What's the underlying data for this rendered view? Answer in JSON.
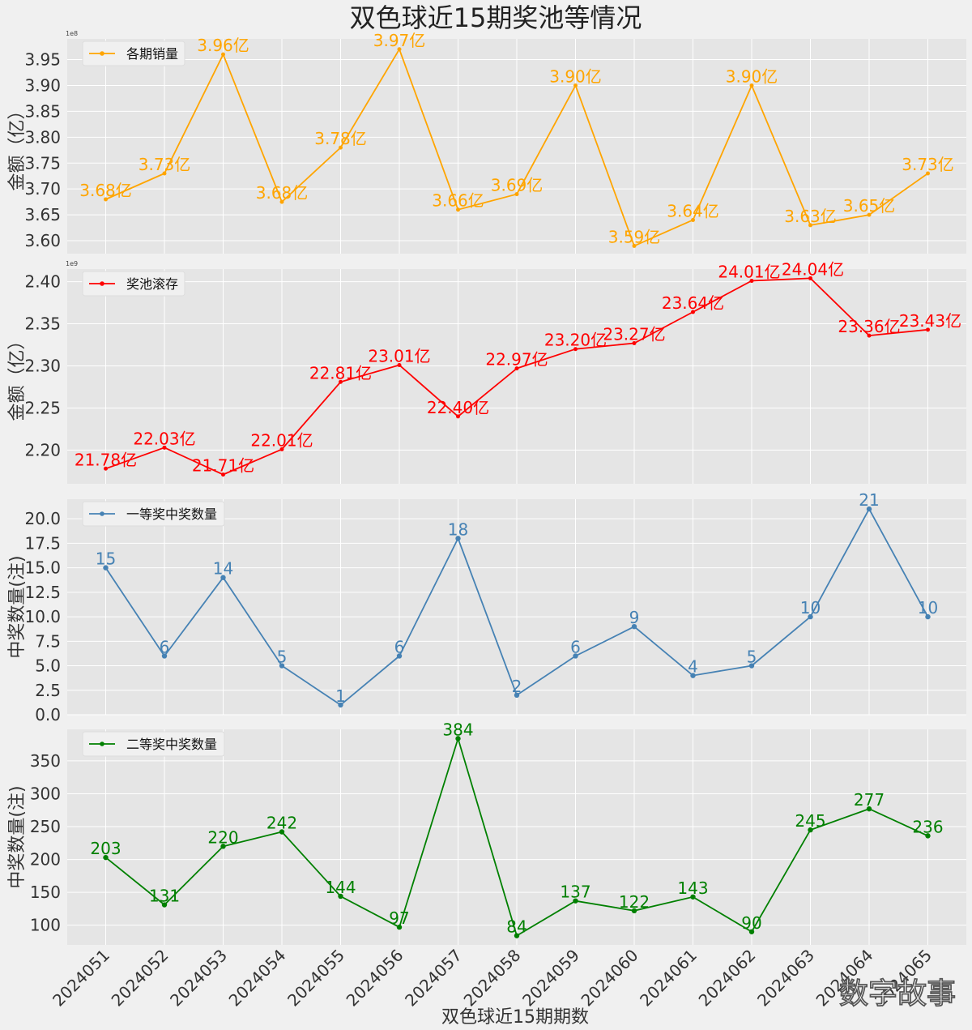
{
  "chart_data": {
    "type": "line",
    "title": "双色球近15期奖池等情况",
    "xlabel": "双色球近15期期数",
    "categories": [
      "2024051",
      "2024052",
      "2024053",
      "2024054",
      "2024055",
      "2024056",
      "2024057",
      "2024058",
      "2024059",
      "2024060",
      "2024061",
      "2024062",
      "2024063",
      "2024064",
      "2024065"
    ],
    "watermark": "数字故事",
    "panels": [
      {
        "name": "各期销量",
        "color": "#FFA500",
        "ylabel": "金额（亿）",
        "exponent": "1e8",
        "scale": 100000000,
        "ylim": [
          3.575,
          3.99
        ],
        "yticks": [
          3.6,
          3.65,
          3.7,
          3.75,
          3.8,
          3.85,
          3.9,
          3.95
        ],
        "tick_decimals": 2,
        "values": [
          3.68,
          3.73,
          3.96,
          3.675,
          3.78,
          3.97,
          3.66,
          3.69,
          3.9,
          3.59,
          3.64,
          3.9,
          3.63,
          3.65,
          3.73
        ],
        "labels": [
          "3.68亿",
          "3.73亿",
          "3.96亿",
          "3.68亿",
          "3.78亿",
          "3.97亿",
          "3.66亿",
          "3.69亿",
          "3.90亿",
          "3.59亿",
          "3.64亿",
          "3.90亿",
          "3.63亿",
          "3.65亿",
          "3.73亿"
        ]
      },
      {
        "name": "奖池滚存",
        "color": "#FF0000",
        "ylabel": "金额（亿）",
        "exponent": "1e9",
        "scale": 1000000000,
        "ylim": [
          2.16,
          2.415
        ],
        "yticks": [
          2.2,
          2.25,
          2.3,
          2.35,
          2.4
        ],
        "tick_decimals": 2,
        "values": [
          2.178,
          2.203,
          2.171,
          2.201,
          2.281,
          2.301,
          2.24,
          2.297,
          2.32,
          2.327,
          2.364,
          2.401,
          2.404,
          2.336,
          2.343
        ],
        "labels": [
          "21.78亿",
          "22.03亿",
          "21.71亿",
          "22.01亿",
          "22.81亿",
          "23.01亿",
          "22.40亿",
          "22.97亿",
          "23.20亿",
          "23.27亿",
          "23.64亿",
          "24.01亿",
          "24.04亿",
          "23.36亿",
          "23.43亿"
        ]
      },
      {
        "name": "一等奖中奖数量",
        "color": "#4682B4",
        "ylabel": "中奖数量(注)",
        "ylim": [
          0,
          22
        ],
        "yticks": [
          0.0,
          2.5,
          5.0,
          7.5,
          10.0,
          12.5,
          15.0,
          17.5,
          20.0
        ],
        "tick_decimals": 1,
        "values": [
          15,
          6,
          14,
          5,
          1,
          6,
          18,
          2,
          6,
          9,
          4,
          5,
          10,
          21,
          10
        ],
        "labels": [
          "15",
          "6",
          "14",
          "5",
          "1",
          "6",
          "18",
          "2",
          "6",
          "9",
          "4",
          "5",
          "10",
          "21",
          "10"
        ]
      },
      {
        "name": "二等奖中奖数量",
        "color": "#008000",
        "ylabel": "中奖数量(注)",
        "ylim": [
          70,
          398
        ],
        "yticks": [
          100,
          150,
          200,
          250,
          300,
          350
        ],
        "tick_decimals": 0,
        "values": [
          203,
          131,
          220,
          242,
          144,
          97,
          384,
          84,
          137,
          122,
          143,
          90,
          245,
          277,
          236
        ],
        "labels": [
          "203",
          "131",
          "220",
          "242",
          "144",
          "97",
          "384",
          "84",
          "137",
          "122",
          "143",
          "90",
          "245",
          "277",
          "236"
        ]
      }
    ]
  }
}
